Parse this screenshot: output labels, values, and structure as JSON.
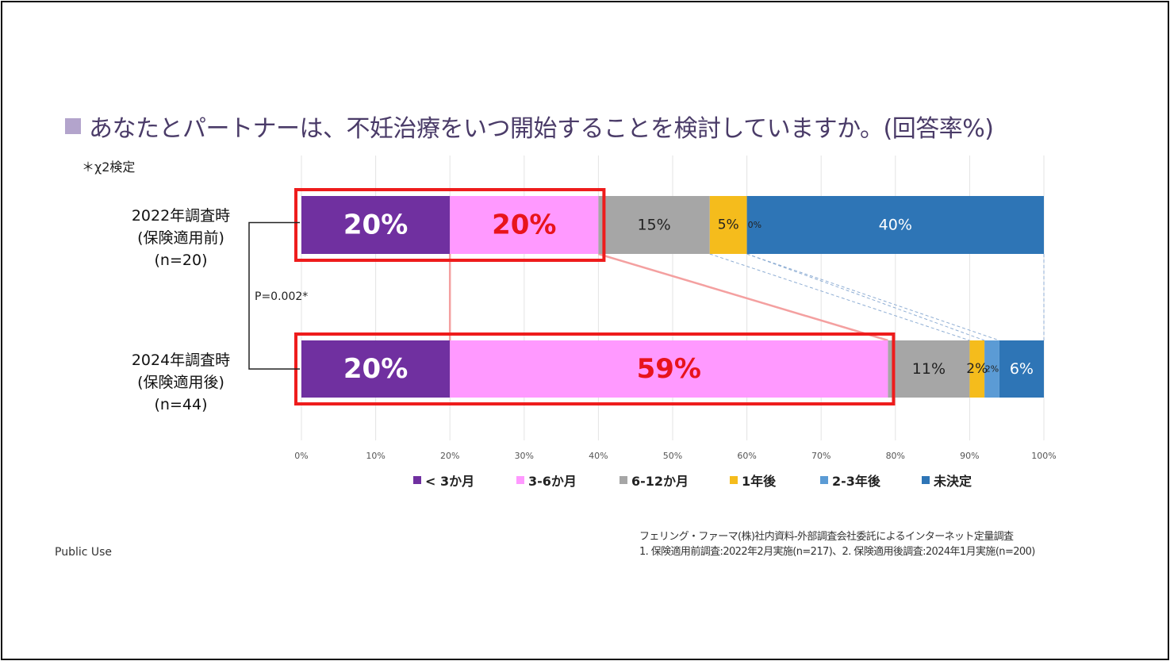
{
  "colors": {
    "title_square": "#b3a4cc",
    "highlight": "#ee1c1c",
    "connector_red": "#f4a0a0",
    "connector_blue": "#8faed4",
    "title_text": "#4a3b68"
  },
  "title": "あなたとパートナーは、不妊治療をいつ開始することを検討していますか。(回答率%)",
  "note": "＊χ2検定",
  "p_value": "P=0.002*",
  "public_use": "Public Use",
  "source_lines": [
    "フェリング・ファーマ(株)社内資料-外部調査会社委託によるインターネット定量調査",
    "1. 保険適用前調査:2022年2月実施(n=217)、2. 保険適用後調査:2024年1月実施(n=200)"
  ],
  "chart_data": {
    "type": "bar",
    "orientation": "horizontal",
    "stacked": true,
    "xlim": [
      0,
      100
    ],
    "xticks": [
      "0%",
      "10%",
      "20%",
      "30%",
      "40%",
      "50%",
      "60%",
      "70%",
      "80%",
      "90%",
      "100%"
    ],
    "grid": true,
    "legend_position": "bottom",
    "categories": [
      [
        "2022年調査時",
        "(保険適用前)",
        "(n=20)"
      ],
      [
        "2024年調査時",
        "(保険適用後)",
        "(n=44)"
      ]
    ],
    "series": [
      {
        "name": "< 3か月",
        "color": "#7030a0",
        "values": [
          20,
          20
        ],
        "labels": [
          "20%",
          "20%"
        ],
        "label_color": "#ffffff",
        "label_size": [
          34,
          34
        ],
        "bold": true
      },
      {
        "name": "3-6か月",
        "color": "#ff99ff",
        "values": [
          20,
          59
        ],
        "labels": [
          "20%",
          "59%"
        ],
        "label_color": "#e8141c",
        "label_size": [
          34,
          34
        ],
        "bold": true
      },
      {
        "name": "6-12か月",
        "color": "#a6a6a6",
        "values": [
          15,
          11
        ],
        "labels": [
          "15%",
          "11%"
        ],
        "label_color": "#222222",
        "label_size": [
          19,
          19
        ],
        "bold": false
      },
      {
        "name": "1年後",
        "color": "#f5bc1c",
        "values": [
          5,
          2
        ],
        "labels": [
          "5%",
          "2%"
        ],
        "label_color": "#222222",
        "label_size": [
          17,
          17
        ],
        "bold": false
      },
      {
        "name": "2-3年後",
        "color": "#5b9bd5",
        "values": [
          0,
          2
        ],
        "labels": [
          "0%",
          "2%"
        ],
        "label_color": "#222222",
        "label_size": [
          11,
          11
        ],
        "bold": false
      },
      {
        "name": "未決定",
        "color": "#2e75b6",
        "values": [
          40,
          6
        ],
        "labels": [
          "40%",
          "6%"
        ],
        "label_color": "#ffffff",
        "label_size": [
          19,
          19
        ],
        "bold": false
      }
    ],
    "highlight_series": [
      0,
      1
    ]
  }
}
